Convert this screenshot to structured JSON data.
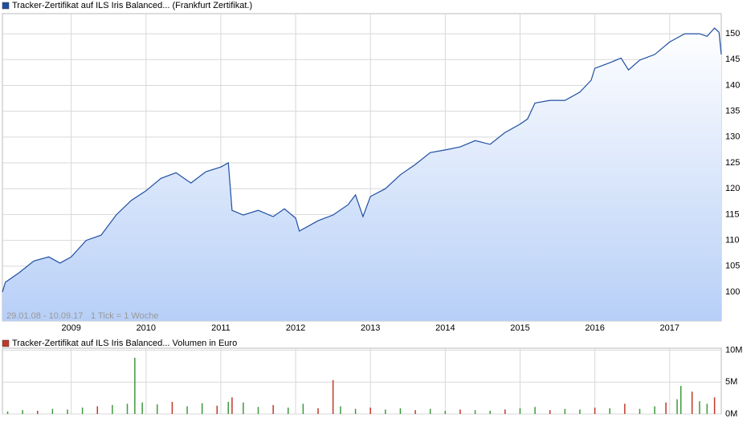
{
  "chart_data": [
    {
      "type": "line",
      "annotations": [
        "29.01.08 - 10.09.17",
        "1 Tick = 1 Woche"
      ],
      "x": [
        2008.08,
        2008.12,
        2008.3,
        2008.5,
        2008.7,
        2008.85,
        2009.0,
        2009.2,
        2009.4,
        2009.6,
        2009.8,
        2010.0,
        2010.2,
        2010.4,
        2010.6,
        2010.8,
        2011.0,
        2011.1,
        2011.15,
        2011.3,
        2011.5,
        2011.7,
        2011.85,
        2012.0,
        2012.05,
        2012.3,
        2012.5,
        2012.7,
        2012.8,
        2012.9,
        2013.0,
        2013.2,
        2013.4,
        2013.6,
        2013.8,
        2014.0,
        2014.2,
        2014.4,
        2014.6,
        2014.8,
        2015.0,
        2015.1,
        2015.2,
        2015.4,
        2015.6,
        2015.8,
        2015.95,
        2016.0,
        2016.2,
        2016.35,
        2016.45,
        2016.6,
        2016.8,
        2017.0,
        2017.2,
        2017.4,
        2017.5,
        2017.6,
        2017.66,
        2017.69
      ],
      "series": [
        {
          "name": "Tracker-Zertifikat auf ILS Iris Balanced... (Frankfurt Zertifikat.)",
          "color": "#1f4fa3",
          "values": [
            100,
            101.9,
            103.7,
            106,
            106.8,
            105.6,
            106.8,
            110,
            111,
            114.9,
            117.7,
            119.6,
            122,
            123.1,
            121.1,
            123.3,
            124.2,
            125,
            115.8,
            114.9,
            115.8,
            114.6,
            116.1,
            114.3,
            111.8,
            113.8,
            114.9,
            116.9,
            118.8,
            114.6,
            118.5,
            120,
            122.7,
            124.7,
            127,
            127.5,
            128.1,
            129.3,
            128.6,
            130.9,
            132.5,
            133.5,
            136.6,
            137.1,
            137.1,
            138.7,
            141,
            143.3,
            144.4,
            145.3,
            143,
            144.9,
            146,
            148.4,
            150,
            150,
            149.5,
            151.1,
            150.3,
            146
          ]
        }
      ],
      "xlim": [
        2008.08,
        2017.69
      ],
      "xticks": [
        2009,
        2010,
        2011,
        2012,
        2013,
        2014,
        2015,
        2016,
        2017
      ],
      "ylim": [
        94.4,
        153.9
      ],
      "yticks": [
        100,
        105,
        110,
        115,
        120,
        125,
        130,
        135,
        140,
        145,
        150
      ],
      "grid": true
    },
    {
      "type": "bar",
      "x": [
        2008.15,
        2008.35,
        2008.55,
        2008.75,
        2008.95,
        2009.15,
        2009.35,
        2009.55,
        2009.75,
        2009.85,
        2009.95,
        2010.15,
        2010.35,
        2010.55,
        2010.75,
        2010.95,
        2011.1,
        2011.15,
        2011.3,
        2011.5,
        2011.7,
        2011.9,
        2012.1,
        2012.3,
        2012.5,
        2012.6,
        2012.8,
        2013.0,
        2013.2,
        2013.4,
        2013.6,
        2013.8,
        2014.0,
        2014.2,
        2014.4,
        2014.6,
        2014.8,
        2015.0,
        2015.2,
        2015.4,
        2015.6,
        2015.8,
        2016.0,
        2016.2,
        2016.4,
        2016.6,
        2016.8,
        2016.95,
        2017.1,
        2017.15,
        2017.3,
        2017.4,
        2017.5,
        2017.6
      ],
      "series": [
        {
          "name": "Tracker-Zertifikat auf ILS Iris Balanced... Volumen in Euro",
          "color": "#c0392b",
          "values": [
            0.4,
            0.6,
            0.5,
            0.8,
            0.7,
            1.0,
            1.2,
            1.4,
            1.6,
            8.8,
            1.8,
            1.5,
            1.9,
            1.2,
            1.7,
            1.3,
            1.9,
            2.6,
            1.8,
            1.1,
            1.4,
            1.0,
            1.6,
            0.9,
            5.3,
            1.2,
            0.8,
            1.0,
            0.7,
            0.9,
            0.6,
            0.8,
            0.5,
            0.7,
            0.6,
            0.5,
            0.7,
            0.9,
            1.1,
            0.6,
            0.8,
            0.7,
            1.0,
            0.9,
            1.6,
            0.8,
            1.2,
            1.8,
            2.3,
            4.4,
            3.5,
            2.0,
            1.6,
            2.6
          ],
          "colors": [
            "#3c9a3c",
            "#3c9a3c",
            "#c0392b",
            "#3c9a3c",
            "#3c9a3c",
            "#3c9a3c",
            "#c0392b",
            "#3c9a3c",
            "#3c9a3c",
            "#3c9a3c",
            "#3c9a3c",
            "#3c9a3c",
            "#c0392b",
            "#3c9a3c",
            "#3c9a3c",
            "#c0392b",
            "#3c9a3c",
            "#c0392b",
            "#3c9a3c",
            "#3c9a3c",
            "#c0392b",
            "#3c9a3c",
            "#3c9a3c",
            "#c0392b",
            "#c0392b",
            "#3c9a3c",
            "#3c9a3c",
            "#c0392b",
            "#3c9a3c",
            "#3c9a3c",
            "#c0392b",
            "#3c9a3c",
            "#3c9a3c",
            "#c0392b",
            "#3c9a3c",
            "#3c9a3c",
            "#c0392b",
            "#3c9a3c",
            "#3c9a3c",
            "#c0392b",
            "#3c9a3c",
            "#3c9a3c",
            "#c0392b",
            "#3c9a3c",
            "#c0392b",
            "#3c9a3c",
            "#3c9a3c",
            "#c0392b",
            "#3c9a3c",
            "#3c9a3c",
            "#c0392b",
            "#3c9a3c",
            "#3c9a3c",
            "#c0392b"
          ]
        }
      ],
      "xlim": [
        2008.08,
        2017.69
      ],
      "xticks": [
        2009,
        2010,
        2011,
        2012,
        2013,
        2014,
        2015,
        2016,
        2017
      ],
      "ylim": [
        0,
        10.3
      ],
      "yticks": [
        {
          "value": 0,
          "label": "0M"
        },
        {
          "value": 5,
          "label": "5M"
        },
        {
          "value": 10,
          "label": "10M"
        }
      ],
      "grid": true
    }
  ]
}
